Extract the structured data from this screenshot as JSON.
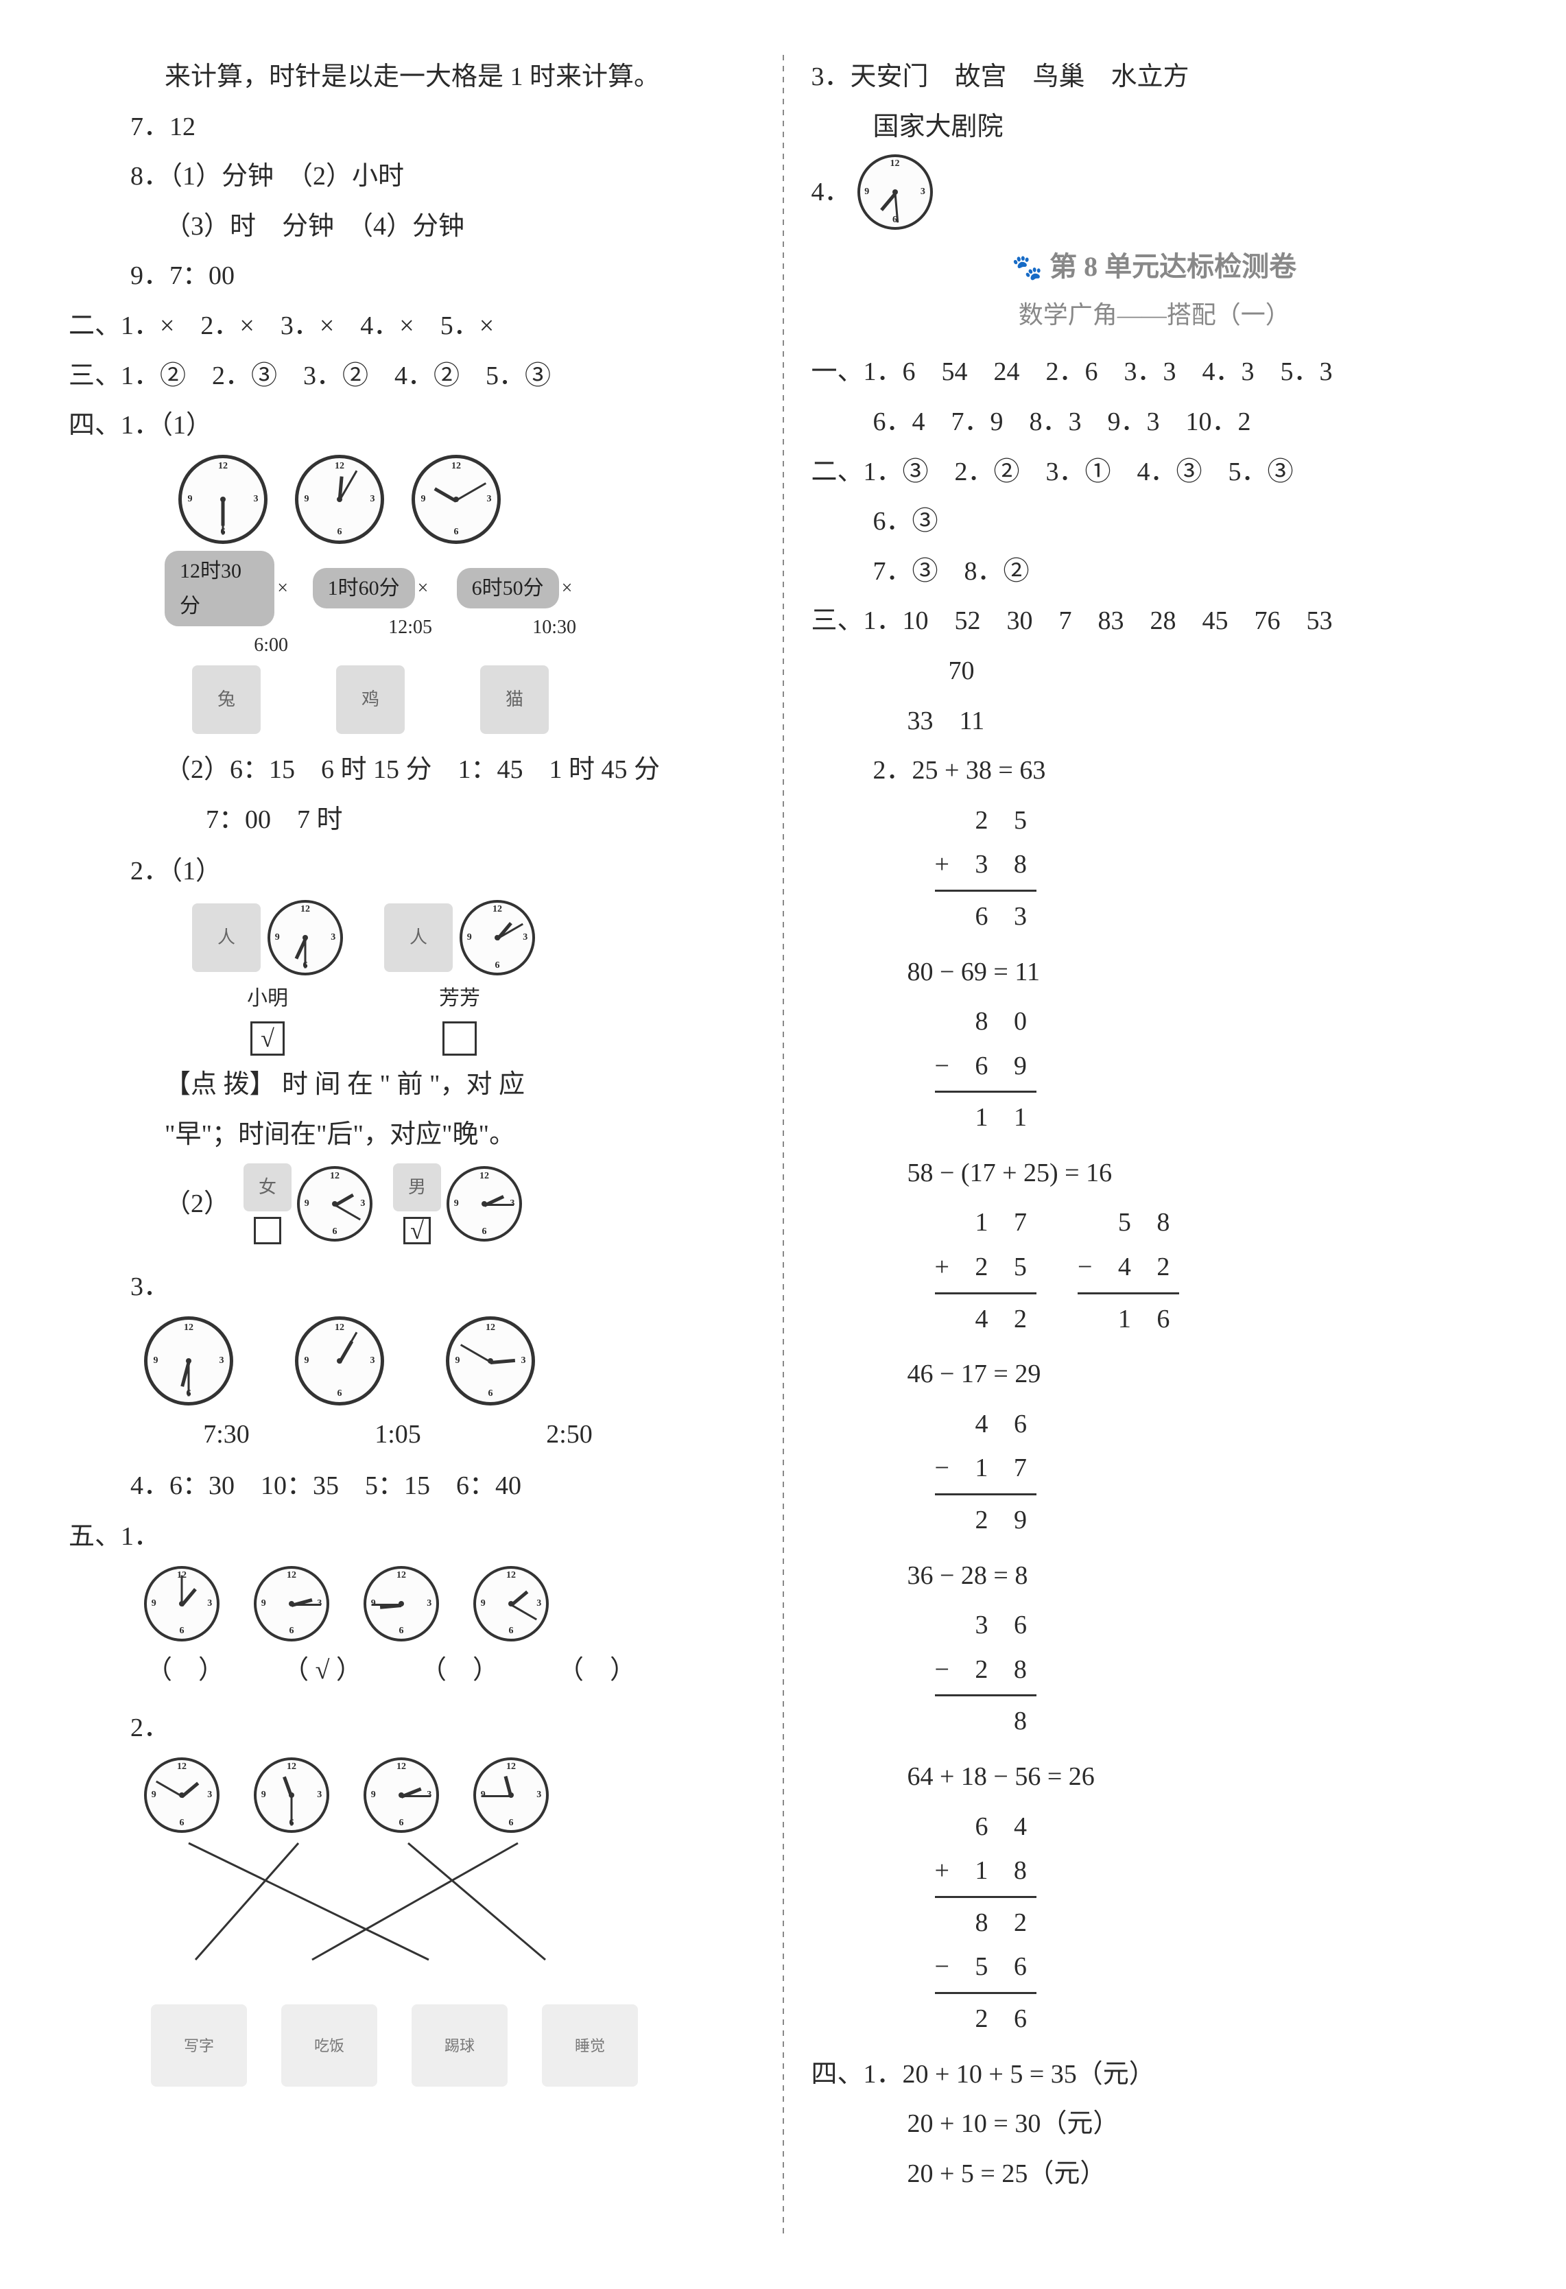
{
  "left": {
    "top_line": "来计算，时针是以走一大格是 1 时来计算。",
    "item7": "7．12",
    "item8_l1": "8．（1）分钟　（2）小时",
    "item8_l2": "（3）时　分钟　（4）分钟",
    "item9": "9．7：00",
    "sec2": "二、1．×　2．×　3．×　4．×　5．×",
    "sec3": "三、1．②　2．③　3．②　4．②　5．③",
    "sec4_header": "四、1．（1）",
    "clocks_4_1": [
      {
        "hour_angle": 90,
        "minute_angle": 90,
        "pill": "12时30分",
        "time": "6:00"
      },
      {
        "hour_angle": -85,
        "minute_angle": -60,
        "pill": "1时60分",
        "time": "12:05"
      },
      {
        "hour_angle": -150,
        "minute_angle": -30,
        "pill": "6时50分",
        "time": "10:30"
      }
    ],
    "characters_4_1": [
      {
        "label": "兔"
      },
      {
        "label": "鸡"
      },
      {
        "label": "猫"
      }
    ],
    "item4_1_2": "（2）6：15　6 时 15 分　1：45　1 时 45 分",
    "item4_1_2b": "7：00　7 时",
    "item4_2_header": "2．（1）",
    "item4_2_people": [
      {
        "name": "小明",
        "check": "√",
        "clock": {
          "hour_angle": 115,
          "minute_angle": 90
        }
      },
      {
        "name": "芳芳",
        "check": "",
        "clock": {
          "hour_angle": -50,
          "minute_angle": -30
        }
      }
    ],
    "hint_l1": "【点 拨】 时 间 在 \" 前 \"，对 应",
    "hint_l2": "\"早\"；时间在\"后\"，对应\"晚\"。",
    "item4_2_2_header": "（2）",
    "item4_2_2": [
      {
        "label": "女",
        "check": "",
        "clock": {
          "hour_angle": -30,
          "minute_angle": 30
        }
      },
      {
        "label": "男",
        "check": "√",
        "clock": {
          "hour_angle": -25,
          "minute_angle": 0
        }
      }
    ],
    "item4_3_header": "3．",
    "item4_3_clocks": [
      {
        "hour_angle": 105,
        "minute_angle": 90,
        "label": "7:30"
      },
      {
        "hour_angle": -60,
        "minute_angle": -60,
        "label": "1:05"
      },
      {
        "hour_angle": -5,
        "minute_angle": 210,
        "label": "2:50"
      }
    ],
    "item4_4": "4．6：30　10：35　5：15　6：40",
    "sec5_header": "五、1．",
    "sec5_1_clocks": [
      {
        "hour_angle": -50,
        "minute_angle": -90
      },
      {
        "hour_angle": -15,
        "minute_angle": 0
      },
      {
        "hour_angle": 175,
        "minute_angle": 180
      },
      {
        "hour_angle": -40,
        "minute_angle": 30
      }
    ],
    "sec5_1_parens": [
      "（　）",
      "（ √ ）",
      "（　）",
      "（　）"
    ],
    "sec5_2_header": "2．",
    "sec5_2_clocks": [
      {
        "hour_angle": -40,
        "minute_angle": 210
      },
      {
        "hour_angle": -110,
        "minute_angle": 90
      },
      {
        "hour_angle": -22,
        "minute_angle": 0
      },
      {
        "hour_angle": -105,
        "minute_angle": 180
      }
    ],
    "sec5_2_activities": [
      "写字",
      "吃饭",
      "踢球",
      "睡觉"
    ],
    "sec5_2_lines": [
      {
        "from": 0,
        "to": 2
      },
      {
        "from": 1,
        "to": 0
      },
      {
        "from": 2,
        "to": 3
      },
      {
        "from": 3,
        "to": 1
      }
    ]
  },
  "right": {
    "item3": "3．天安门　故宫　鸟巢　水立方",
    "item3b": "国家大剧院",
    "item4_label": "4．",
    "item4_clock": {
      "hour_angle": 130,
      "minute_angle": 85
    },
    "unit_title": "第 8 单元达标检测卷",
    "unit_sub": "数学广角——搭配（一）",
    "sec1_l1": "一、1．6　54　24　2．6　3．3　4．3　5．3",
    "sec1_l2": "6．4　7．9　8．3　9．3　10．2",
    "sec2_l1": "二、1．③　2．②　3．①　4．③　5．③",
    "sec2_l2": "6．③",
    "sec2_l3": "7．③　8．②",
    "sec3_l1": "三、1．10　52　30　7　83　28　45　76　53",
    "sec3_l2": "70",
    "sec3_l3": "33　11",
    "calcs": [
      {
        "eq": "2．25 + 38 = 63",
        "cols": [
          {
            "rows": [
              "  2 5",
              "+ 3 8"
            ],
            "res": "  6 3"
          }
        ]
      },
      {
        "eq": "80 − 69 = 11",
        "cols": [
          {
            "rows": [
              "  8 0",
              "− 6 9"
            ],
            "res": "  1 1"
          }
        ]
      },
      {
        "eq": "58 − (17 + 25) = 16",
        "cols": [
          {
            "rows": [
              "  1 7",
              "+ 2 5"
            ],
            "res": "  4 2"
          },
          {
            "rows": [
              "  5 8",
              "− 4 2"
            ],
            "res": "  1 6"
          }
        ]
      },
      {
        "eq": "46 − 17 = 29",
        "cols": [
          {
            "rows": [
              "  4 6",
              "− 1 7"
            ],
            "res": "  2 9"
          }
        ]
      },
      {
        "eq": "36 − 28 = 8",
        "cols": [
          {
            "rows": [
              "  3 6",
              "− 2 8"
            ],
            "res": "    8"
          }
        ]
      },
      {
        "eq": "64 + 18 − 56 = 26",
        "cols": [
          {
            "rows": [
              "  6 4",
              "+ 1 8"
            ],
            "res": "  8 2",
            "rows2": [
              "− 5 6"
            ],
            "res2": "  2 6"
          }
        ]
      }
    ],
    "sec4_l1": "四、1．20 + 10 + 5 = 35（元）",
    "sec4_l2": "20 + 10 = 30（元）",
    "sec4_l3": "20 + 5 = 25（元）"
  },
  "colors": {
    "text": "#2a2a2a",
    "muted": "#888888",
    "pill_bg": "#bbbbbb",
    "bg": "#ffffff"
  }
}
